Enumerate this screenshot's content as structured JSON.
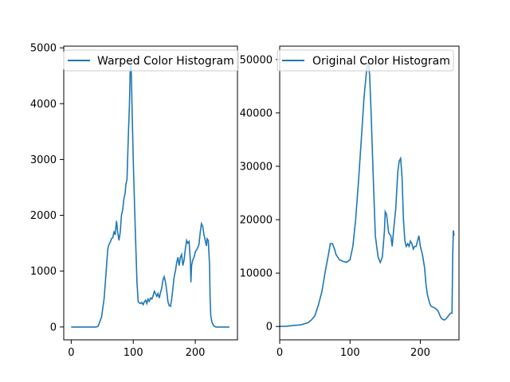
{
  "chart_data": [
    {
      "type": "line",
      "legend_loc": "upper-left",
      "xlim": [
        -12,
        268
      ],
      "ylim": [
        -230,
        5030
      ],
      "xticks": [
        0,
        100,
        200
      ],
      "yticks": [
        0,
        1000,
        2000,
        3000,
        4000,
        5000
      ],
      "series": [
        {
          "name": "Warped Color Histogram",
          "color": "#1f77b4",
          "points": [
            [
              0,
              0
            ],
            [
              40,
              0
            ],
            [
              43,
              10
            ],
            [
              45,
              60
            ],
            [
              47,
              120
            ],
            [
              49,
              180
            ],
            [
              51,
              350
            ],
            [
              53,
              500
            ],
            [
              55,
              800
            ],
            [
              57,
              1100
            ],
            [
              59,
              1400
            ],
            [
              61,
              1480
            ],
            [
              63,
              1520
            ],
            [
              65,
              1580
            ],
            [
              67,
              1600
            ],
            [
              69,
              1700
            ],
            [
              71,
              1650
            ],
            [
              73,
              1900
            ],
            [
              75,
              1700
            ],
            [
              77,
              1550
            ],
            [
              79,
              1700
            ],
            [
              81,
              2000
            ],
            [
              83,
              2100
            ],
            [
              85,
              2300
            ],
            [
              87,
              2400
            ],
            [
              88,
              2550
            ],
            [
              90,
              2650
            ],
            [
              92,
              3400
            ],
            [
              94,
              4000
            ],
            [
              95,
              4550
            ],
            [
              96,
              4700
            ],
            [
              97,
              4500
            ],
            [
              98,
              4000
            ],
            [
              100,
              3000
            ],
            [
              102,
              2200
            ],
            [
              104,
              1500
            ],
            [
              106,
              800
            ],
            [
              108,
              450
            ],
            [
              110,
              430
            ],
            [
              112,
              420
            ],
            [
              114,
              440
            ],
            [
              116,
              400
            ],
            [
              118,
              450
            ],
            [
              120,
              480
            ],
            [
              122,
              420
            ],
            [
              124,
              500
            ],
            [
              126,
              460
            ],
            [
              128,
              520
            ],
            [
              130,
              500
            ],
            [
              132,
              560
            ],
            [
              134,
              640
            ],
            [
              136,
              600
            ],
            [
              138,
              550
            ],
            [
              140,
              600
            ],
            [
              142,
              520
            ],
            [
              144,
              620
            ],
            [
              146,
              700
            ],
            [
              148,
              850
            ],
            [
              150,
              900
            ],
            [
              152,
              800
            ],
            [
              154,
              650
            ],
            [
              156,
              450
            ],
            [
              158,
              380
            ],
            [
              160,
              370
            ],
            [
              162,
              500
            ],
            [
              164,
              700
            ],
            [
              166,
              900
            ],
            [
              168,
              1000
            ],
            [
              170,
              1150
            ],
            [
              172,
              1250
            ],
            [
              174,
              1100
            ],
            [
              176,
              1250
            ],
            [
              178,
              1300
            ],
            [
              180,
              1100
            ],
            [
              182,
              1200
            ],
            [
              184,
              1400
            ],
            [
              186,
              1550
            ],
            [
              188,
              1500
            ],
            [
              190,
              1530
            ],
            [
              192,
              1200
            ],
            [
              193,
              800
            ],
            [
              194,
              1100
            ],
            [
              196,
              1200
            ],
            [
              198,
              1250
            ],
            [
              200,
              1350
            ],
            [
              202,
              1380
            ],
            [
              204,
              1420
            ],
            [
              206,
              1480
            ],
            [
              208,
              1700
            ],
            [
              210,
              1850
            ],
            [
              212,
              1800
            ],
            [
              214,
              1650
            ],
            [
              216,
              1550
            ],
            [
              218,
              1450
            ],
            [
              219,
              1580
            ],
            [
              221,
              1550
            ],
            [
              223,
              1100
            ],
            [
              224,
              500
            ],
            [
              225,
              200
            ],
            [
              227,
              80
            ],
            [
              230,
              20
            ],
            [
              233,
              0
            ],
            [
              255,
              0
            ]
          ]
        }
      ]
    },
    {
      "type": "line",
      "legend_loc": "upper-left",
      "xlim": [
        0,
        255
      ],
      "ylim": [
        -2500,
        52500
      ],
      "xticks": [
        0,
        100,
        200
      ],
      "yticks": [
        0,
        10000,
        20000,
        30000,
        40000,
        50000
      ],
      "series": [
        {
          "name": "Original Color Histogram",
          "color": "#1f77b4",
          "points": [
            [
              0,
              0
            ],
            [
              10,
              50
            ],
            [
              20,
              200
            ],
            [
              30,
              300
            ],
            [
              35,
              500
            ],
            [
              40,
              700
            ],
            [
              45,
              1200
            ],
            [
              50,
              2000
            ],
            [
              55,
              4000
            ],
            [
              60,
              6500
            ],
            [
              65,
              10500
            ],
            [
              70,
              14000
            ],
            [
              72,
              15500
            ],
            [
              75,
              15500
            ],
            [
              78,
              14500
            ],
            [
              80,
              13500
            ],
            [
              85,
              12500
            ],
            [
              90,
              12200
            ],
            [
              95,
              12000
            ],
            [
              100,
              12500
            ],
            [
              104,
              15000
            ],
            [
              108,
              20000
            ],
            [
              112,
              27000
            ],
            [
              116,
              35000
            ],
            [
              120,
              43000
            ],
            [
              124,
              48500
            ],
            [
              126,
              49500
            ],
            [
              128,
              47000
            ],
            [
              130,
              40000
            ],
            [
              133,
              28000
            ],
            [
              136,
              17000
            ],
            [
              140,
              13000
            ],
            [
              143,
              12000
            ],
            [
              146,
              13000
            ],
            [
              149,
              18000
            ],
            [
              150,
              21500
            ],
            [
              152,
              21000
            ],
            [
              155,
              17500
            ],
            [
              158,
              17000
            ],
            [
              160,
              15000
            ],
            [
              162,
              18000
            ],
            [
              165,
              22000
            ],
            [
              168,
              29000
            ],
            [
              170,
              31000
            ],
            [
              172,
              31500
            ],
            [
              174,
              28000
            ],
            [
              176,
              20000
            ],
            [
              178,
              16000
            ],
            [
              180,
              15000
            ],
            [
              182,
              15500
            ],
            [
              184,
              15000
            ],
            [
              186,
              16000
            ],
            [
              188,
              15500
            ],
            [
              190,
              14500
            ],
            [
              192,
              15000
            ],
            [
              194,
              15000
            ],
            [
              196,
              16000
            ],
            [
              198,
              17000
            ],
            [
              200,
              15000
            ],
            [
              203,
              13500
            ],
            [
              206,
              11000
            ],
            [
              208,
              8000
            ],
            [
              210,
              6000
            ],
            [
              213,
              4500
            ],
            [
              215,
              3800
            ],
            [
              220,
              3500
            ],
            [
              225,
              3000
            ],
            [
              228,
              2000
            ],
            [
              230,
              1500
            ],
            [
              234,
              1200
            ],
            [
              237,
              1500
            ],
            [
              240,
              2000
            ],
            [
              243,
              2500
            ],
            [
              245,
              2500
            ],
            [
              246,
              13000
            ],
            [
              247,
              18000
            ],
            [
              248,
              17000
            ]
          ]
        }
      ]
    }
  ]
}
